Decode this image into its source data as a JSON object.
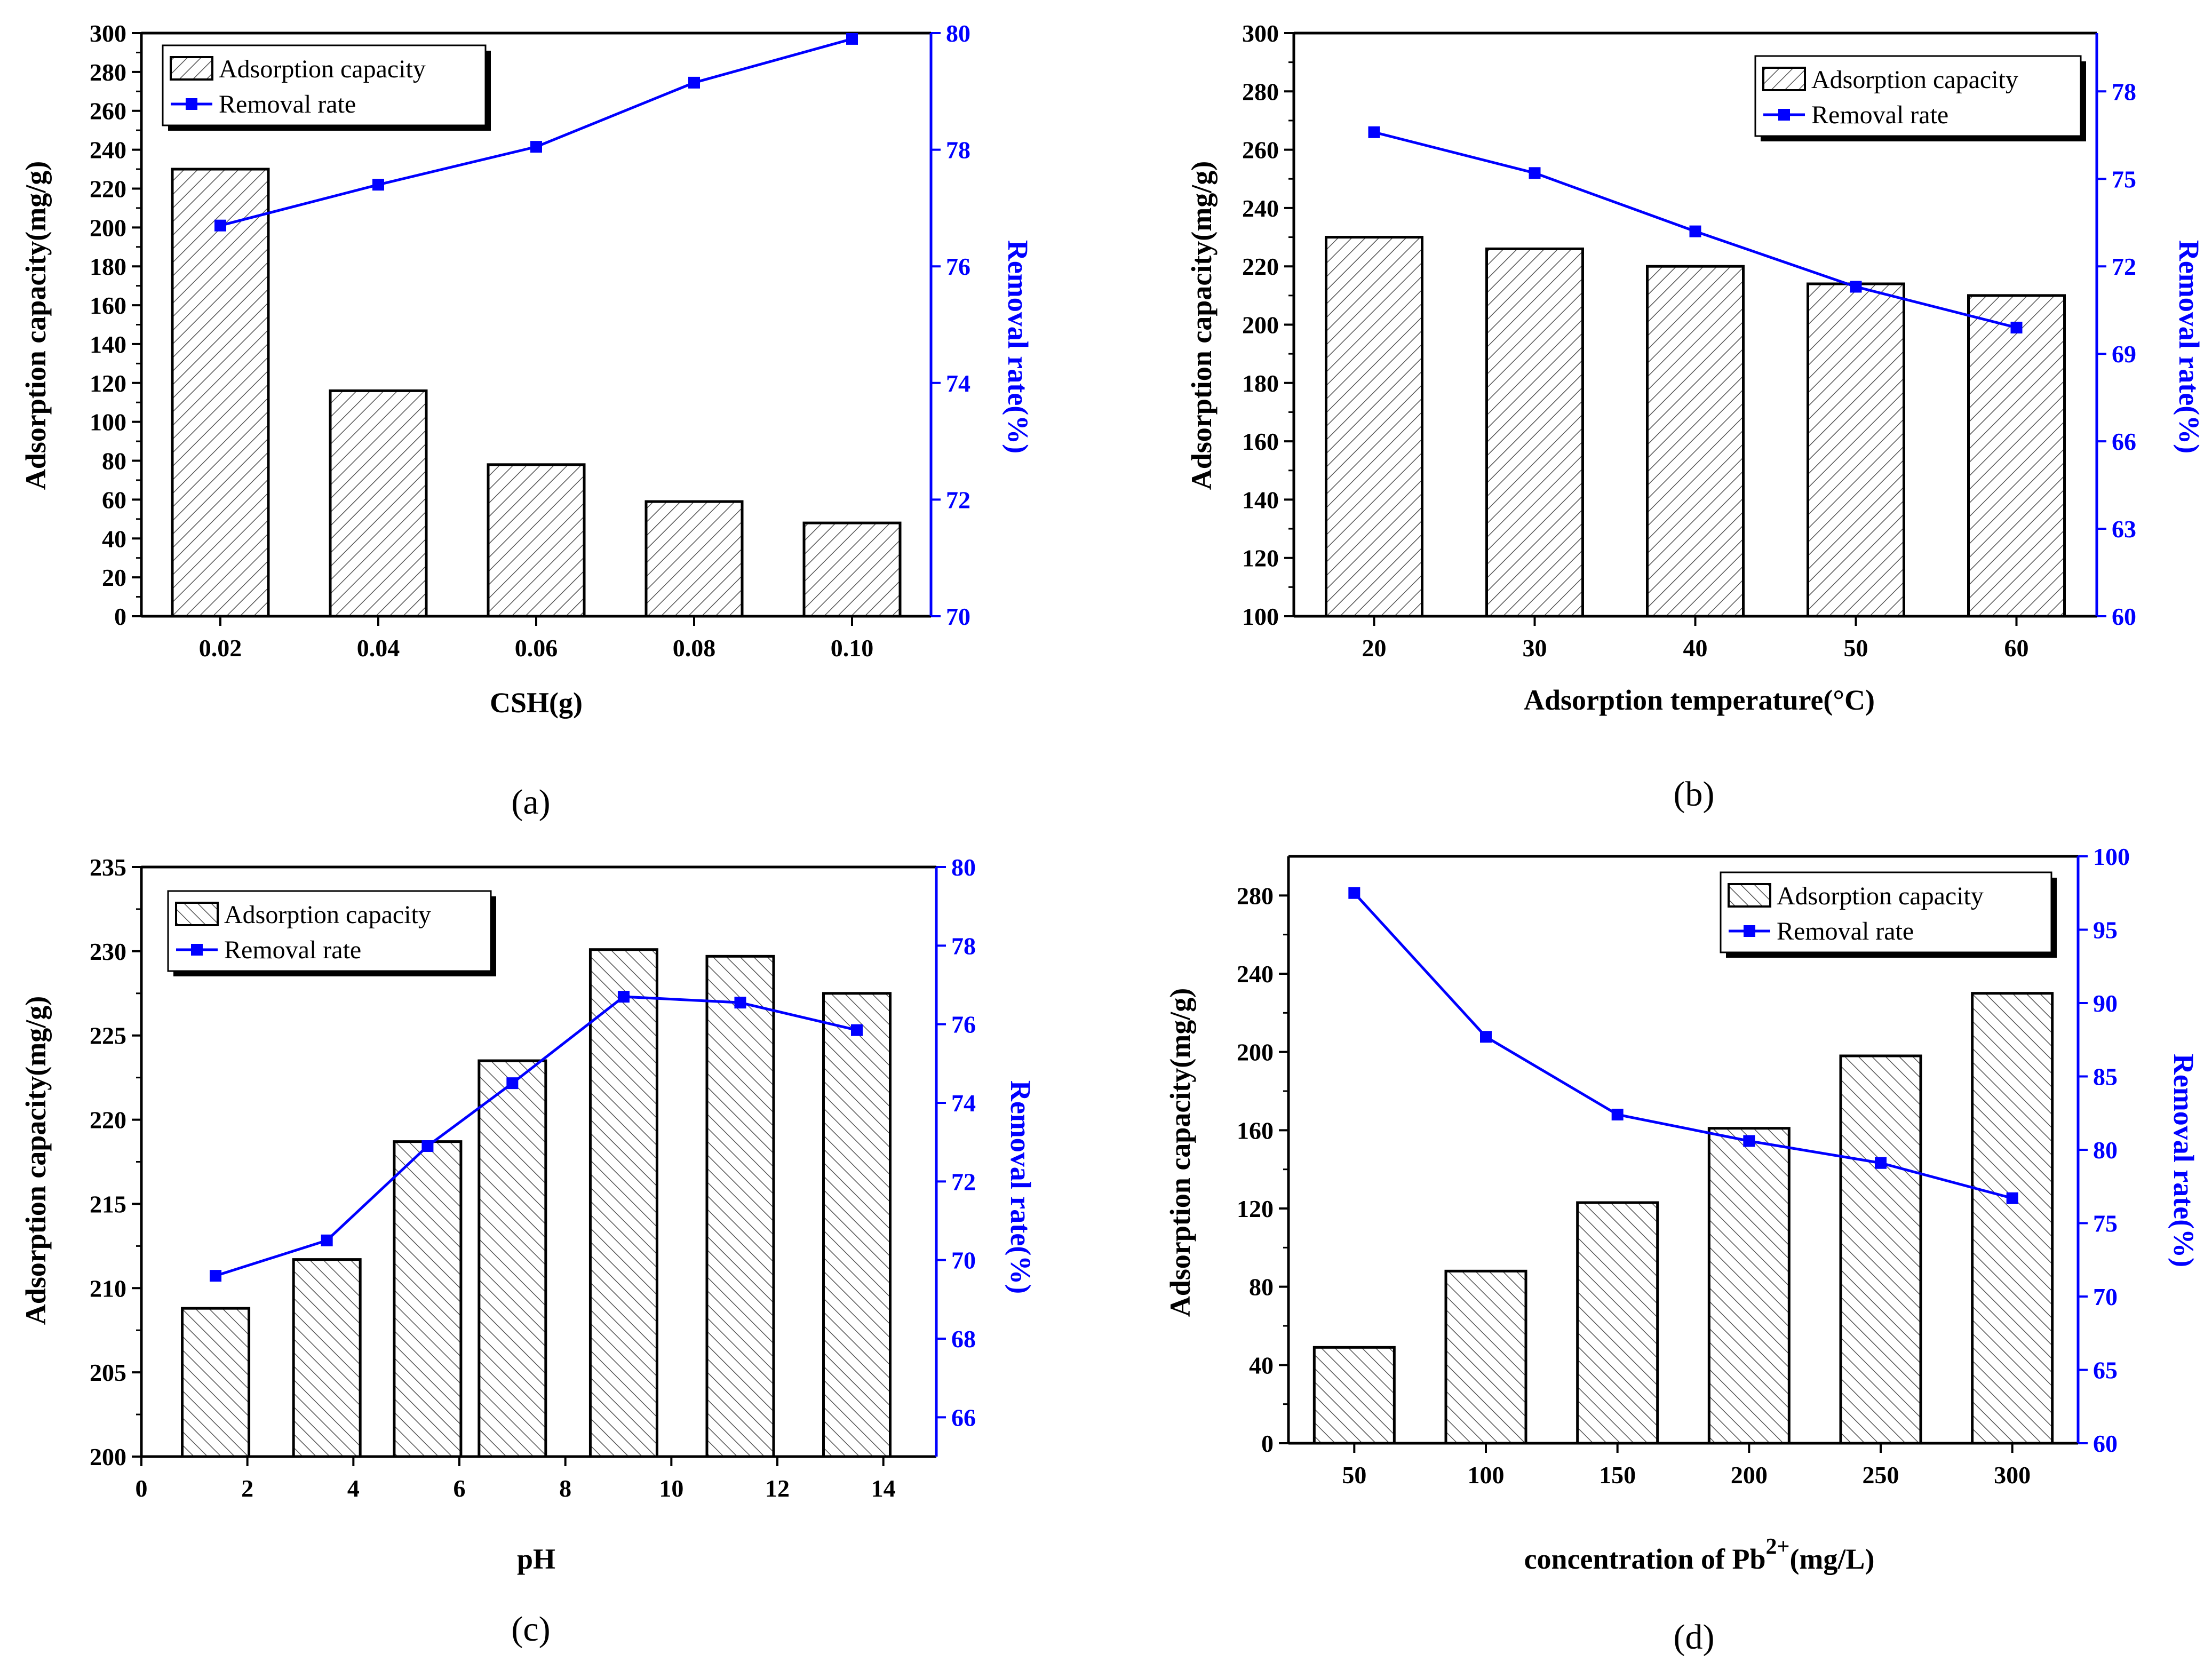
{
  "colors": {
    "bar_fill": "#ffffff",
    "bar_stroke": "#000000",
    "line": "#0000ff",
    "right_axis": "#0000ff",
    "hatch": "#555555"
  },
  "legend": {
    "bar": "Adsorption capacity",
    "line": "Removal rate"
  },
  "chart_data": [
    {
      "type": "bar",
      "panel": "(a)",
      "xlabel": "CSH(g)",
      "ylabel": "Adsorption capacity(mg/g)",
      "y2label": "Removal rate(%)",
      "categories": [
        "0.02",
        "0.04",
        "0.06",
        "0.08",
        "0.10"
      ],
      "ylim": [
        0,
        300
      ],
      "yticks": [
        "0",
        "20",
        "40",
        "60",
        "80",
        "100",
        "120",
        "140",
        "160",
        "180",
        "200",
        "220",
        "240",
        "260",
        "280",
        "300"
      ],
      "y2lim": [
        70,
        80
      ],
      "y2ticks": [
        "70",
        "72",
        "74",
        "76",
        "78",
        "80"
      ],
      "series": [
        {
          "name": "Adsorption capacity",
          "axis": "left",
          "values": [
            230,
            116,
            78,
            59,
            48
          ]
        },
        {
          "name": "Removal rate",
          "axis": "right",
          "values": [
            76.7,
            77.4,
            78.05,
            79.15,
            79.9
          ]
        }
      ]
    },
    {
      "type": "bar",
      "panel": "(b)",
      "xlabel": "Adsorption temperature(°C)",
      "ylabel": "Adsorption capacity(mg/g)",
      "y2label": "Removal rate(%)",
      "categories": [
        "20",
        "30",
        "40",
        "50",
        "60"
      ],
      "ylim": [
        100,
        300
      ],
      "yticks": [
        "100",
        "120",
        "140",
        "160",
        "180",
        "200",
        "220",
        "240",
        "260",
        "280",
        "300"
      ],
      "y2lim": [
        60,
        80
      ],
      "y2ticks": [
        "60",
        "63",
        "66",
        "69",
        "72",
        "75",
        "78"
      ],
      "series": [
        {
          "name": "Adsorption capacity",
          "axis": "left",
          "values": [
            230,
            226,
            220,
            214,
            210
          ]
        },
        {
          "name": "Removal rate",
          "axis": "right",
          "values": [
            76.6,
            75.2,
            73.2,
            71.3,
            69.9
          ]
        }
      ]
    },
    {
      "type": "bar",
      "panel": "(c)",
      "xlabel": "pH",
      "ylabel": "Adsorption capacity(mg/g)",
      "y2label": "Removal rate(%)",
      "xlim": [
        0,
        15
      ],
      "xticks": [
        "0",
        "2",
        "4",
        "6",
        "8",
        "10",
        "12",
        "14"
      ],
      "x": [
        1.4,
        3.5,
        5.4,
        7.0,
        9.1,
        11.3,
        13.5
      ],
      "ylim": [
        200,
        235
      ],
      "yticks": [
        "200",
        "205",
        "210",
        "215",
        "220",
        "225",
        "230",
        "235"
      ],
      "y2lim": [
        65,
        80
      ],
      "y2ticks": [
        "66",
        "68",
        "70",
        "72",
        "74",
        "76",
        "78",
        "80"
      ],
      "series": [
        {
          "name": "Adsorption capacity",
          "axis": "left",
          "values": [
            208.8,
            211.7,
            218.7,
            223.5,
            230.1,
            229.7,
            227.5
          ]
        },
        {
          "name": "Removal rate",
          "axis": "right",
          "values": [
            69.6,
            70.5,
            72.9,
            74.5,
            76.7,
            76.55,
            75.85
          ]
        }
      ]
    },
    {
      "type": "bar",
      "panel": "(d)",
      "xlabel_main": "concentration  of  Pb",
      "xlabel_sup": "2+",
      "xlabel_tail": "(mg/L)",
      "ylabel": "Adsorption capacity(mg/g)",
      "y2label": "Removal rate(%)",
      "categories": [
        "50",
        "100",
        "150",
        "200",
        "250",
        "300"
      ],
      "ylim": [
        0,
        300
      ],
      "yticks": [
        "0",
        "40",
        "80",
        "120",
        "160",
        "200",
        "240",
        "280"
      ],
      "y2lim": [
        60,
        100
      ],
      "y2ticks": [
        "60",
        "65",
        "70",
        "75",
        "80",
        "85",
        "90",
        "95",
        "100"
      ],
      "series": [
        {
          "name": "Adsorption capacity",
          "axis": "left",
          "values": [
            49,
            88,
            123,
            161,
            198,
            230
          ]
        },
        {
          "name": "Removal rate",
          "axis": "right",
          "values": [
            97.5,
            87.7,
            82.4,
            80.6,
            79.1,
            76.7
          ]
        }
      ]
    }
  ]
}
